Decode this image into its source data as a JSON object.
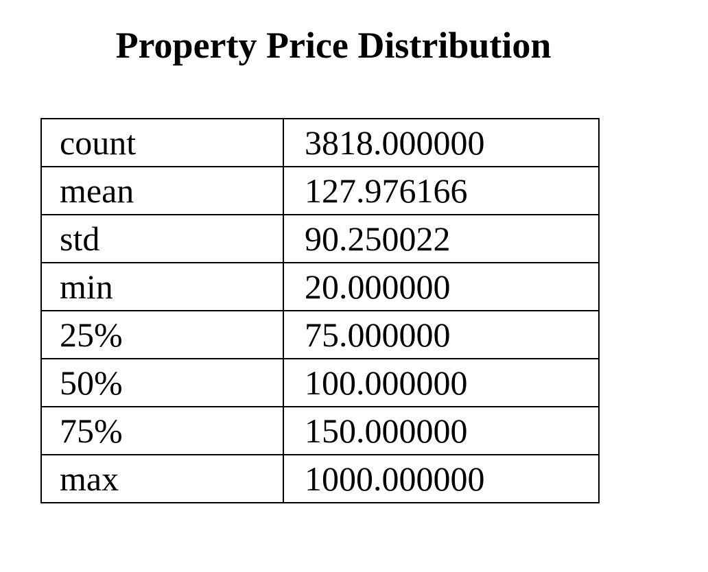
{
  "chart_data": {
    "type": "table",
    "title": "Property Price Distribution",
    "rows": [
      {
        "label": "count",
        "value": "3818.000000"
      },
      {
        "label": "mean",
        "value": "127.976166"
      },
      {
        "label": "std",
        "value": "90.250022"
      },
      {
        "label": "min",
        "value": "20.000000"
      },
      {
        "label": "25%",
        "value": "75.000000"
      },
      {
        "label": "50%",
        "value": "100.000000"
      },
      {
        "label": "75%",
        "value": "150.000000"
      },
      {
        "label": "max",
        "value": "1000.000000"
      }
    ]
  }
}
